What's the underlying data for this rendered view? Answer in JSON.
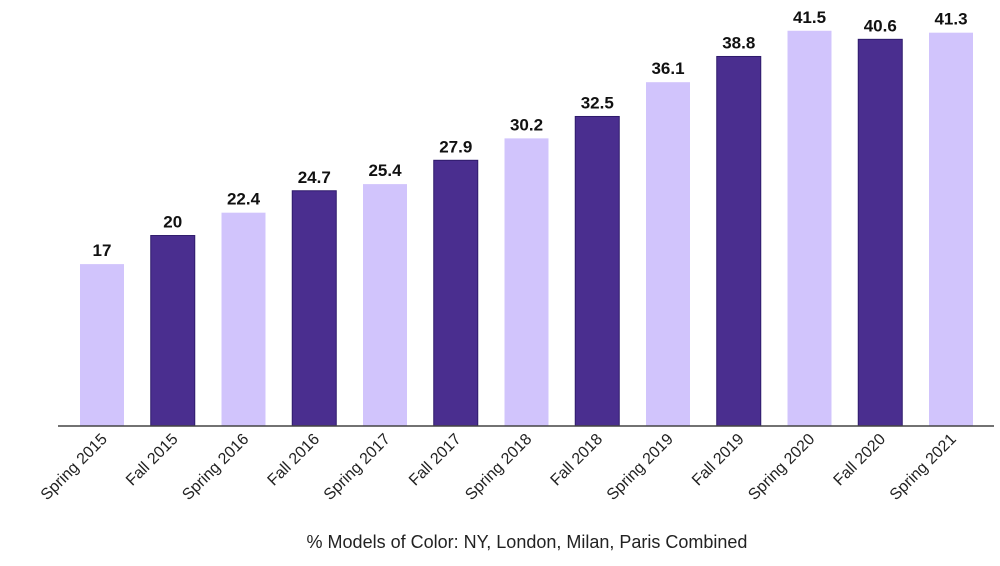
{
  "chart_data": {
    "type": "bar",
    "title": "",
    "xlabel": "% Models of Color: NY, London, Milan, Paris Combined",
    "ylabel": "",
    "ylim": [
      0,
      42
    ],
    "grid": false,
    "categories": [
      "Spring 2015",
      "Fall 2015",
      "Spring 2016",
      "Fall 2016",
      "Spring 2017",
      "Fall 2017",
      "Spring 2018",
      "Fall 2018",
      "Spring 2019",
      "Fall 2019",
      "Spring 2020",
      "Fall 2020",
      "Spring 2021"
    ],
    "values": [
      17,
      20,
      22.4,
      24.7,
      25.4,
      27.9,
      30.2,
      32.5,
      36.1,
      38.8,
      41.5,
      40.6,
      41.3
    ],
    "value_labels": [
      "17",
      "20",
      "22.4",
      "24.7",
      "25.4",
      "27.9",
      "30.2",
      "32.5",
      "36.1",
      "38.8",
      "41.5",
      "40.6",
      "41.3"
    ],
    "colors": {
      "spring": "#d1c4fc",
      "fall": "#4a2e8f",
      "axis": "#444444"
    }
  }
}
